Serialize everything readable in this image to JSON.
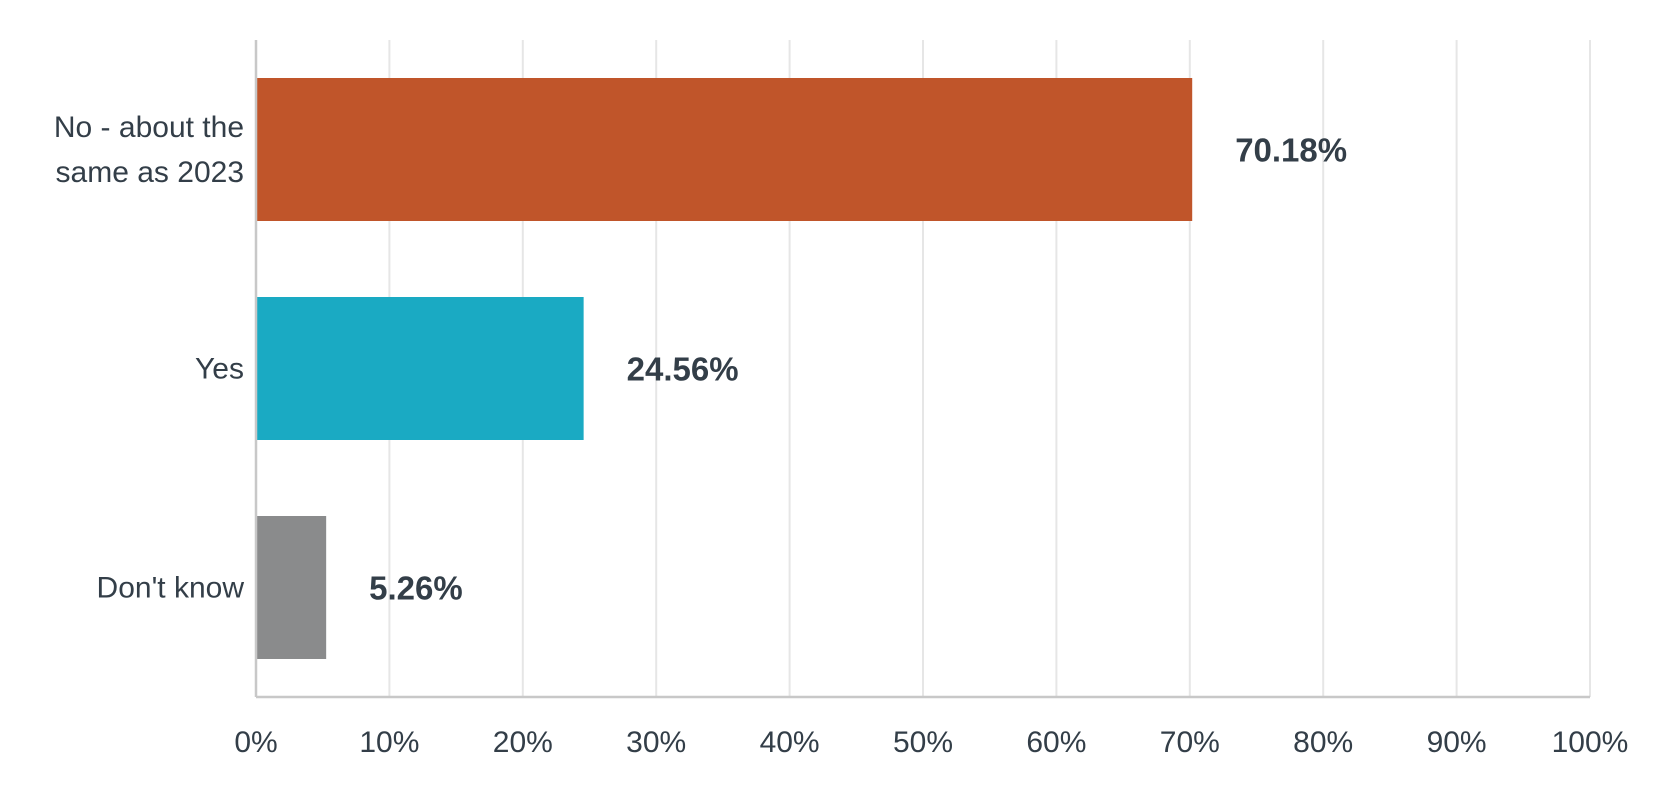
{
  "chart_data": {
    "type": "bar",
    "orientation": "horizontal",
    "categories": [
      [
        "No - about the",
        "same as 2023"
      ],
      [
        "Yes"
      ],
      [
        "Don't know"
      ]
    ],
    "values": [
      70.18,
      24.56,
      5.26
    ],
    "value_labels": [
      "70.18%",
      "24.56%",
      "5.26%"
    ],
    "colors": [
      "#c0552a",
      "#1aaac3",
      "#8a8b8c"
    ],
    "xlim": [
      0,
      100
    ],
    "x_ticks": [
      0,
      10,
      20,
      30,
      40,
      50,
      60,
      70,
      80,
      90,
      100
    ],
    "x_tick_labels": [
      "0%",
      "10%",
      "20%",
      "30%",
      "40%",
      "50%",
      "60%",
      "70%",
      "80%",
      "90%",
      "100%"
    ],
    "grid": true,
    "title": "",
    "xlabel": "",
    "ylabel": ""
  }
}
